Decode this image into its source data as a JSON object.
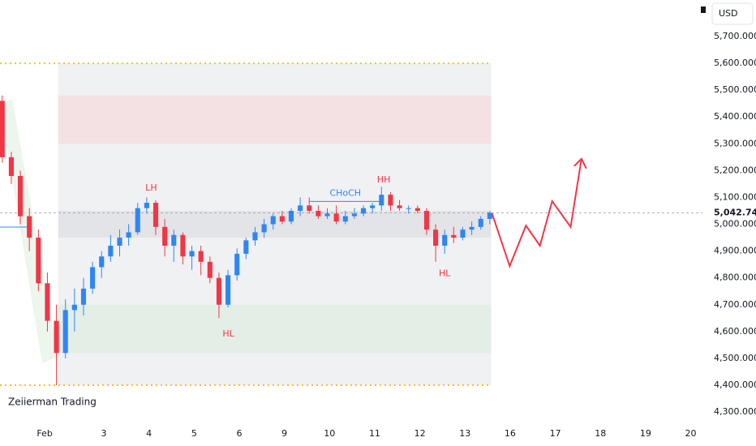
{
  "chart_data": {
    "type": "candlestick",
    "currency": "USD",
    "watermark": "Zeiierman Trading",
    "xlim": [
      -0.3,
      15.26
    ],
    "ylim": [
      4264,
      5836
    ],
    "xticks": [
      {
        "value": 0.69,
        "label": "Feb"
      },
      {
        "value": 2,
        "label": "3"
      },
      {
        "value": 3,
        "label": "4"
      },
      {
        "value": 4,
        "label": "5"
      },
      {
        "value": 5,
        "label": "6"
      },
      {
        "value": 6,
        "label": "9"
      },
      {
        "value": 7,
        "label": "10"
      },
      {
        "value": 8,
        "label": "11"
      },
      {
        "value": 9,
        "label": "12"
      },
      {
        "value": 10,
        "label": "13"
      },
      {
        "value": 11,
        "label": "16"
      },
      {
        "value": 12,
        "label": "17"
      },
      {
        "value": 13,
        "label": "18"
      },
      {
        "value": 14,
        "label": "19"
      },
      {
        "value": 15,
        "label": "20"
      }
    ],
    "yticks": [
      {
        "value": 4300,
        "label": "4,300.000"
      },
      {
        "value": 4400,
        "label": "4,400.000"
      },
      {
        "value": 4500,
        "label": "4,500.000"
      },
      {
        "value": 4600,
        "label": "4,600.000"
      },
      {
        "value": 4700,
        "label": "4,700.000"
      },
      {
        "value": 4800,
        "label": "4,800.000"
      },
      {
        "value": 4900,
        "label": "4,900.000"
      },
      {
        "value": 5000,
        "label": "5,000.000"
      },
      {
        "value": 5100,
        "label": "5,100.000"
      },
      {
        "value": 5200,
        "label": "5,200.000"
      },
      {
        "value": 5300,
        "label": "5,300.000"
      },
      {
        "value": 5400,
        "label": "5,400.000"
      },
      {
        "value": 5500,
        "label": "5,500.000"
      },
      {
        "value": 5600,
        "label": "5,600.000"
      },
      {
        "value": 5700,
        "label": "5,700.000"
      }
    ],
    "up_color": "#2e86f5",
    "down_color": "#f23645",
    "candles": {
      "x": [
        -0.25,
        -0.05,
        0.15,
        0.35,
        0.55,
        0.75,
        0.95,
        1.15,
        1.35,
        1.55,
        1.75,
        1.95,
        2.15,
        2.35,
        2.55,
        2.75,
        2.95,
        3.15,
        3.35,
        3.55,
        3.75,
        3.95,
        4.15,
        4.35,
        4.55,
        4.75,
        4.95,
        5.15,
        5.35,
        5.55,
        5.75,
        5.95,
        6.15,
        6.35,
        6.55,
        6.75,
        6.95,
        7.15,
        7.35,
        7.55,
        7.75,
        7.95,
        8.15,
        8.35,
        8.55,
        8.75,
        8.95,
        9.15,
        9.35,
        9.55,
        9.75,
        9.95,
        10.15,
        10.35,
        10.55
      ],
      "open": [
        5460,
        5250,
        5180,
        5030,
        4950,
        4780,
        4640,
        4520,
        4680,
        4700,
        4760,
        4840,
        4880,
        4920,
        4950,
        4970,
        5060,
        5080,
        4990,
        4920,
        4960,
        4880,
        4900,
        4860,
        4800,
        4700,
        4810,
        4890,
        4940,
        4970,
        5000,
        5030,
        5010,
        5050,
        5070,
        5050,
        5030,
        5040,
        5010,
        5030,
        5040,
        5060,
        5070,
        5110,
        5070,
        5060,
        5060,
        5050,
        4980,
        4920,
        4960,
        4950,
        4980,
        4990,
        5020
      ],
      "high": [
        5480,
        5270,
        5200,
        5060,
        4980,
        4820,
        4700,
        4720,
        4760,
        4800,
        4860,
        4900,
        4960,
        4980,
        5000,
        5080,
        5100,
        5090,
        5020,
        4980,
        4970,
        4920,
        4920,
        4880,
        4820,
        4830,
        4910,
        4950,
        4990,
        5020,
        5040,
        5050,
        5060,
        5100,
        5100,
        5070,
        5060,
        5070,
        5050,
        5060,
        5070,
        5080,
        5140,
        5120,
        5090,
        5070,
        5070,
        5060,
        5000,
        4980,
        4990,
        4990,
        5010,
        5030,
        5050
      ],
      "low": [
        5230,
        5150,
        5000,
        4900,
        4750,
        4600,
        4400,
        4500,
        4600,
        4660,
        4740,
        4800,
        4860,
        4880,
        4920,
        4960,
        5040,
        4960,
        4880,
        4860,
        4850,
        4830,
        4810,
        4780,
        4650,
        4690,
        4790,
        4870,
        4920,
        4950,
        4980,
        5000,
        5000,
        5030,
        5040,
        5020,
        5020,
        5000,
        5000,
        5020,
        5030,
        5040,
        5050,
        5050,
        5050,
        5040,
        5040,
        4960,
        4860,
        4890,
        4930,
        4940,
        4960,
        4980,
        5000
      ],
      "close": [
        5250,
        5180,
        5030,
        4950,
        4780,
        4640,
        4520,
        4680,
        4700,
        4760,
        4840,
        4880,
        4920,
        4950,
        4970,
        5060,
        5080,
        4990,
        4920,
        4960,
        4880,
        4900,
        4860,
        4800,
        4700,
        4810,
        4890,
        4940,
        4970,
        5000,
        5030,
        5010,
        5050,
        5070,
        5050,
        5030,
        5040,
        5010,
        5030,
        5040,
        5060,
        5070,
        5110,
        5070,
        5060,
        5060,
        5050,
        4980,
        4920,
        4960,
        4950,
        4980,
        4990,
        5020,
        5042.74
      ]
    },
    "last_price": {
      "value": 5042.74,
      "label": "5,042.740"
    },
    "zones": [
      {
        "name": "range",
        "x": [
          0.99,
          10.58
        ],
        "price": [
          4400,
          5600
        ],
        "color": "#f0f1f3"
      },
      {
        "name": "supply",
        "x": [
          0.99,
          10.58
        ],
        "price": [
          5300,
          5480
        ],
        "color": "#f3e1e3"
      },
      {
        "name": "equilibrium",
        "x": [
          0.99,
          10.58
        ],
        "price": [
          4950,
          5050
        ],
        "color": "#e3e4e7"
      },
      {
        "name": "demand",
        "x": [
          0.99,
          10.58
        ],
        "price": [
          4520,
          4700
        ],
        "color": "#e3eee6"
      }
    ],
    "range_lines": {
      "x": [
        -0.3,
        10.58
      ],
      "price": [
        5600,
        4400
      ],
      "color": "#f5c518"
    },
    "choch": {
      "text": "CHoCH",
      "x": [
        6.55,
        8.15
      ],
      "price": 5085
    },
    "annotations": [
      {
        "text": "LH",
        "x": 3.05,
        "price": 5135
      },
      {
        "text": "HL",
        "x": 4.76,
        "price": 4590
      },
      {
        "text": "HH",
        "x": 8.2,
        "price": 5165
      },
      {
        "text": "HL",
        "x": 9.55,
        "price": 4815
      }
    ],
    "projection": {
      "color": "#f23645",
      "x": [
        10.6,
        10.99,
        11.35,
        11.66,
        11.93,
        12.34,
        12.58
      ],
      "price": [
        5040,
        4844,
        4995,
        4920,
        5086,
        4990,
        5244
      ]
    }
  }
}
